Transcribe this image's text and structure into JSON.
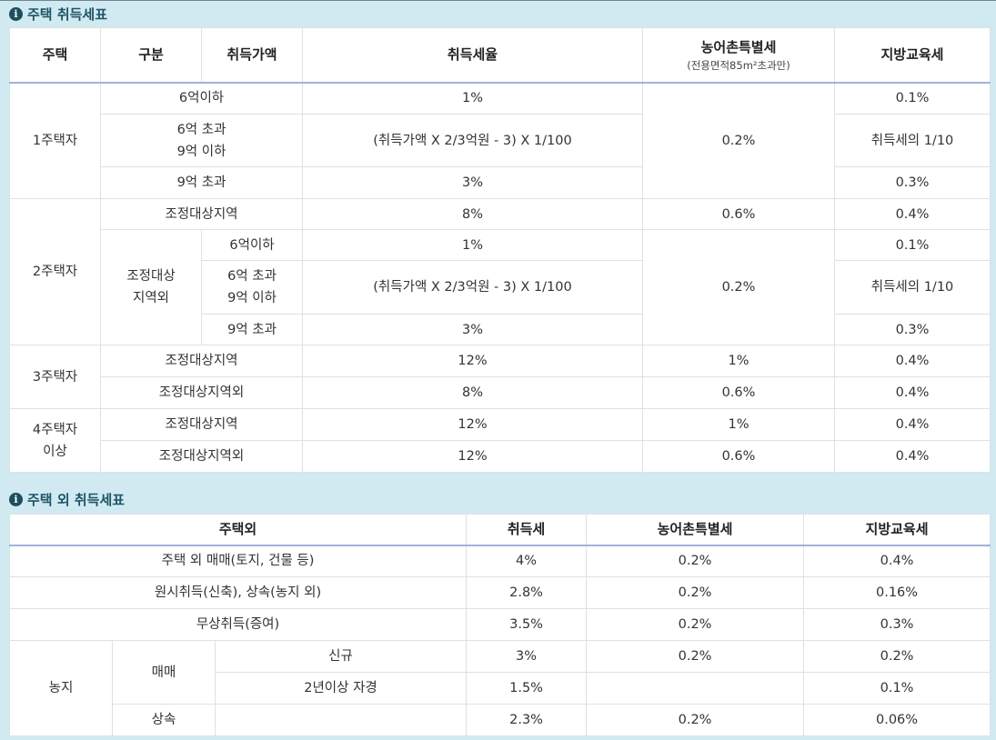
{
  "section1": {
    "title": "주택 취득세표",
    "headers": {
      "house": "주택",
      "division": "구분",
      "price": "취득가액",
      "rate": "취득세율",
      "rural": "농어촌특별세",
      "rural_note": "(전용면적85m²초과만)",
      "edu": "지방교육세"
    },
    "groups": {
      "one": "1주택자",
      "two": "2주택자",
      "three": "3주택자",
      "four": "4주택자\n이상"
    },
    "labels": {
      "under6": "6억이하",
      "over6under9": "6억 초과\n9억 이하",
      "over9": "9억 초과",
      "adjusted": "조정대상지역",
      "non_adjusted_split": "조정대상\n지역외",
      "non_adjusted": "조정대상지역외"
    },
    "values": {
      "r1": "1%",
      "formula": "(취득가액 X 2/3억원 - 3) X 1/100",
      "r3": "3%",
      "r8": "8%",
      "r12": "12%",
      "rural_02": "0.2%",
      "rural_06": "0.6%",
      "rural_1": "1%",
      "edu_01": "0.1%",
      "edu_tenth": "취득세의 1/10",
      "edu_03": "0.3%",
      "edu_04": "0.4%"
    }
  },
  "section2": {
    "title": "주택 외 취득세표",
    "headers": {
      "non_house": "주택외",
      "tax": "취득세",
      "rural": "농어촌특별세",
      "edu": "지방교육세"
    },
    "rows": [
      {
        "label": "주택 외 매매(토지, 건물 등)",
        "tax": "4%",
        "rural": "0.2%",
        "edu": "0.4%"
      },
      {
        "label": "원시취득(신축), 상속(농지 외)",
        "tax": "2.8%",
        "rural": "0.2%",
        "edu": "0.16%"
      },
      {
        "label": "무상취득(증여)",
        "tax": "3.5%",
        "rural": "0.2%",
        "edu": "0.3%"
      }
    ],
    "farmland": {
      "label": "농지",
      "trade": "매매",
      "new": "신규",
      "new_tax": "3%",
      "new_rural": "0.2%",
      "new_edu": "0.2%",
      "selfcult": "2년이상 자경",
      "selfcult_tax": "1.5%",
      "selfcult_edu": "0.1%",
      "inherit": "상속",
      "inherit_tax": "2.3%",
      "inherit_rural": "0.2%",
      "inherit_edu": "0.06%"
    }
  }
}
